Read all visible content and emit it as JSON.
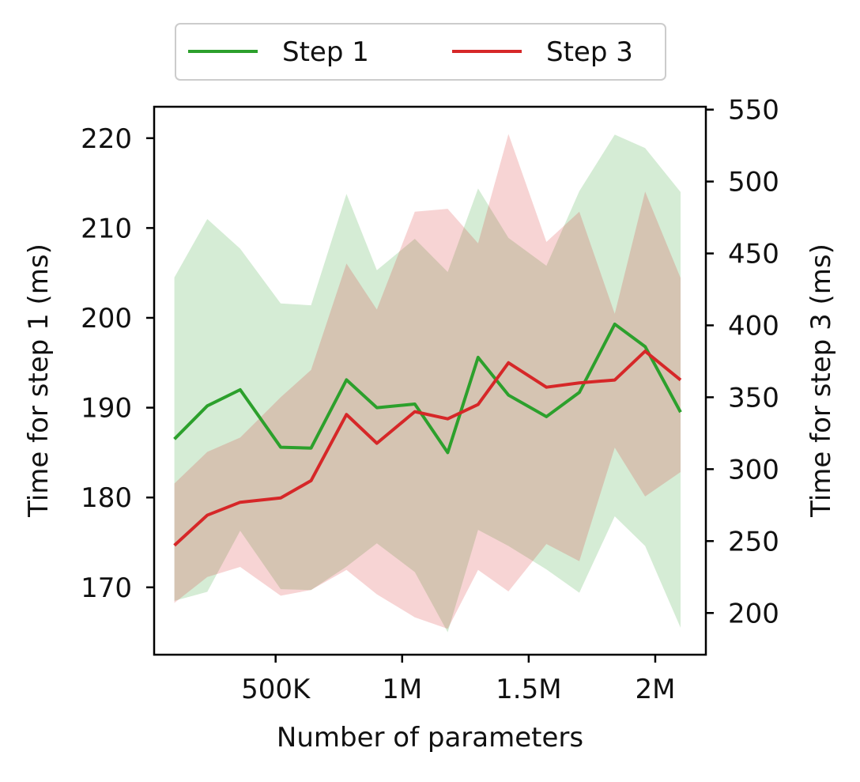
{
  "chart_data": {
    "type": "line",
    "title": "",
    "xlabel": "Number of parameters",
    "ylabel_left": "Time for step 1 (ms)",
    "ylabel_right": "Time for step 3 (ms)",
    "x": [
      100000,
      230000,
      360000,
      520000,
      640000,
      780000,
      900000,
      1050000,
      1180000,
      1300000,
      1420000,
      1570000,
      1700000,
      1840000,
      1960000,
      2100000
    ],
    "xlim": [
      20000,
      2200000
    ],
    "xticks": [
      500000,
      1000000,
      1500000,
      2000000
    ],
    "xtick_labels": [
      "500K",
      "1M",
      "1.5M",
      "2M"
    ],
    "ylim_left": [
      162.5,
      223.5
    ],
    "yticks_left": [
      170,
      180,
      190,
      200,
      210,
      220
    ],
    "ytick_labels_left": [
      "170",
      "180",
      "190",
      "200",
      "210",
      "220"
    ],
    "ylim_right": [
      171,
      552
    ],
    "yticks_right": [
      200,
      250,
      300,
      350,
      400,
      450,
      500,
      550
    ],
    "ytick_labels_right": [
      "200",
      "250",
      "300",
      "350",
      "400",
      "450",
      "500",
      "550"
    ],
    "legend_position": "above plot, centered",
    "series": [
      {
        "name": "Step 1",
        "axis": "left",
        "color": "#2ca02c",
        "values": [
          186.5,
          190.2,
          192.0,
          185.6,
          185.5,
          193.1,
          190.0,
          190.4,
          185.0,
          195.6,
          191.4,
          189.0,
          191.7,
          199.3,
          196.8,
          189.5
        ],
        "band_lower": [
          168.5,
          169.5,
          176.3,
          169.8,
          169.7,
          172.3,
          174.9,
          171.7,
          165.0,
          176.4,
          174.6,
          172.0,
          169.4,
          177.9,
          174.6,
          165.5
        ],
        "band_upper": [
          204.5,
          211.0,
          207.7,
          201.6,
          201.4,
          213.8,
          205.3,
          208.8,
          205.1,
          214.4,
          208.9,
          205.8,
          214.1,
          220.4,
          218.9,
          214.0
        ],
        "band_opacity": 0.2
      },
      {
        "name": "Step 3",
        "axis": "right",
        "color": "#d62728",
        "values": [
          247,
          268,
          277,
          280,
          292,
          338,
          318,
          340,
          335,
          345,
          374,
          357,
          360,
          362,
          382,
          362
        ],
        "band_lower": [
          207,
          225,
          232,
          212,
          216,
          230,
          213,
          197,
          189,
          230,
          215,
          248,
          236,
          315,
          281,
          298
        ],
        "band_upper": [
          290,
          312,
          322,
          350,
          369,
          443,
          411,
          479,
          481,
          457,
          533,
          458,
          479,
          408,
          493,
          433
        ],
        "band_opacity": 0.2
      }
    ]
  }
}
